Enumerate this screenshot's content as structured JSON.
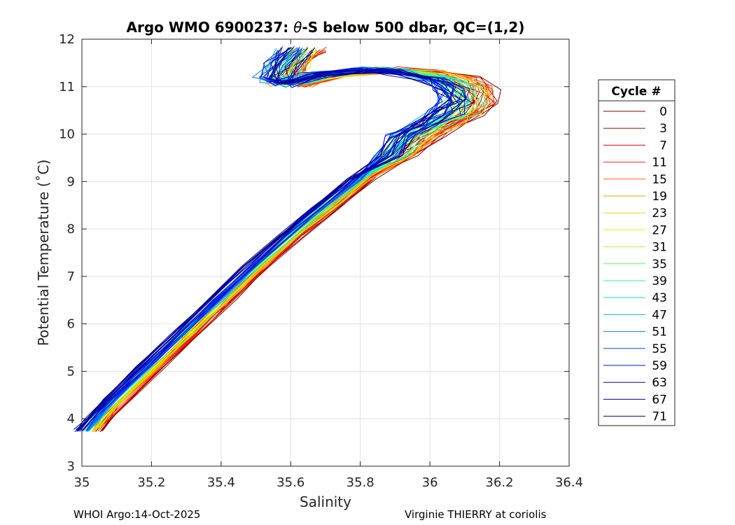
{
  "chart_data": {
    "type": "line",
    "title": "Argo WMO 6900237: θ-S below 500 dbar,  QC=(1,2)",
    "title_prefix": "Argo WMO 6900237: ",
    "title_theta": "θ",
    "title_suffix": "-S below 500 dbar,  QC=(1,2)",
    "xlabel": "Salinity",
    "ylabel": "Potential Temperature (˚C)",
    "xlim": [
      35,
      36.4
    ],
    "ylim": [
      3,
      12
    ],
    "x_ticks": [
      "35",
      "35.2",
      "35.4",
      "35.6",
      "35.8",
      "36",
      "36.2",
      "36.4"
    ],
    "y_ticks": [
      "3",
      "4",
      "5",
      "6",
      "7",
      "8",
      "9",
      "10",
      "11",
      "12"
    ],
    "grid": true,
    "legend_title": "Cycle #",
    "legend_position": "right",
    "series": [
      {
        "name": "0",
        "color": "#800000"
      },
      {
        "name": "3",
        "color": "#c00000"
      },
      {
        "name": "7",
        "color": "#e00000"
      },
      {
        "name": "11",
        "color": "#ff2a00"
      },
      {
        "name": "15",
        "color": "#ff6000"
      },
      {
        "name": "19",
        "color": "#ff9600"
      },
      {
        "name": "23",
        "color": "#ffd000"
      },
      {
        "name": "27",
        "color": "#f0f000"
      },
      {
        "name": "31",
        "color": "#a8ff30"
      },
      {
        "name": "35",
        "color": "#50ff50"
      },
      {
        "name": "39",
        "color": "#20ffa0"
      },
      {
        "name": "43",
        "color": "#00f0e0"
      },
      {
        "name": "47",
        "color": "#00b8ff"
      },
      {
        "name": "51",
        "color": "#0080ff"
      },
      {
        "name": "55",
        "color": "#0048ff"
      },
      {
        "name": "59",
        "color": "#0010ff"
      },
      {
        "name": "63",
        "color": "#0000d0"
      },
      {
        "name": "67",
        "color": "#0000a8"
      },
      {
        "name": "71",
        "color": "#000080"
      }
    ],
    "profile_shape": {
      "salinity": [
        35.02,
        35.05,
        35.1,
        35.2,
        35.3,
        35.4,
        35.5,
        35.6,
        35.7,
        35.8,
        35.9,
        35.98,
        36.05,
        36.1,
        36.13,
        36.12,
        36.08,
        35.98,
        35.85,
        35.7,
        35.6,
        35.57,
        35.59,
        35.63
      ],
      "temperature": [
        3.75,
        4.0,
        4.4,
        5.1,
        5.8,
        6.5,
        7.2,
        7.85,
        8.45,
        9.05,
        9.55,
        9.95,
        10.25,
        10.45,
        10.7,
        10.95,
        11.15,
        11.3,
        11.35,
        11.25,
        11.05,
        11.15,
        11.45,
        11.78
      ]
    }
  },
  "footer": {
    "left": "WHOI Argo:14-Oct-2025",
    "right": "Virginie THIERRY at coriolis"
  }
}
